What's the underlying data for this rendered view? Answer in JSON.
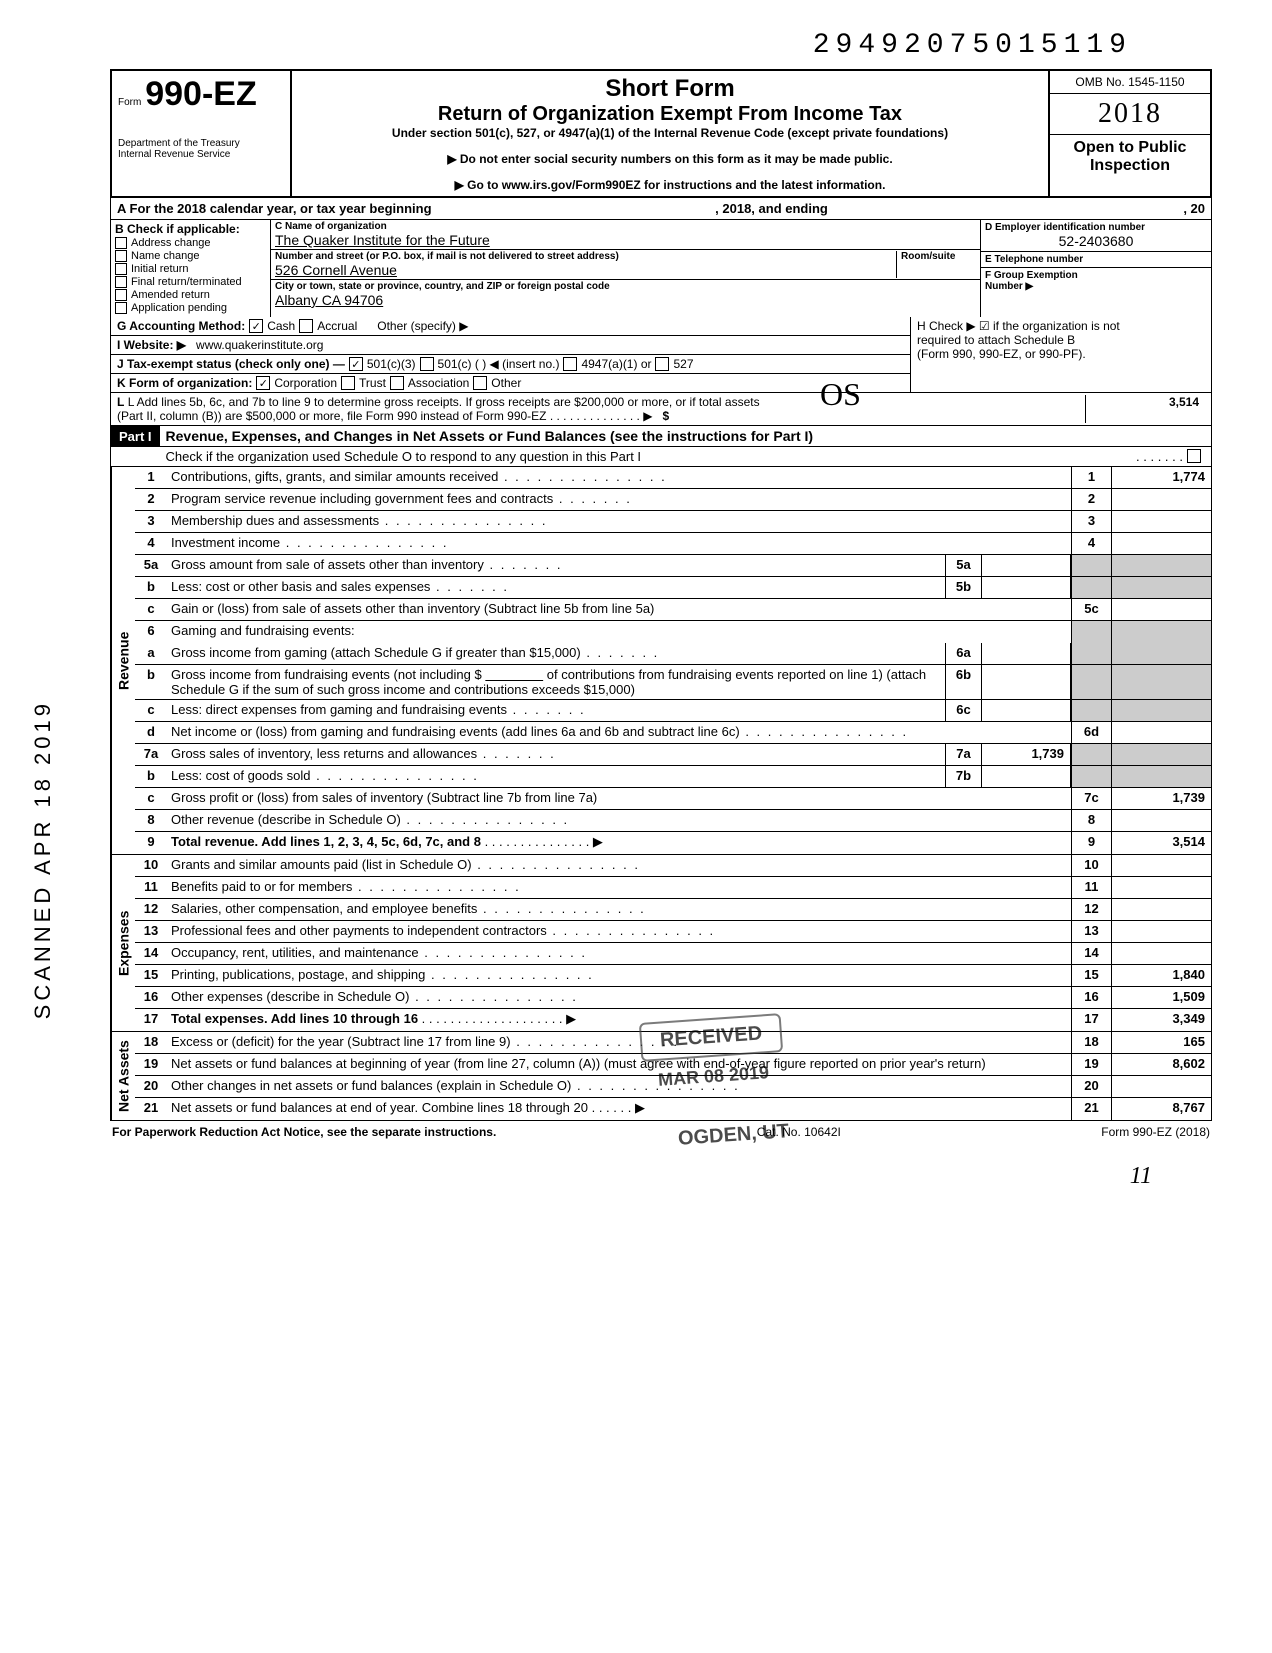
{
  "top_number": "29492075015119",
  "form": {
    "label": "Form",
    "number": "990-EZ",
    "dept1": "Department of the Treasury",
    "dept2": "Internal Revenue Service"
  },
  "header": {
    "short_form": "Short Form",
    "title": "Return of Organization Exempt From Income Tax",
    "subtitle": "Under section 501(c), 527, or 4947(a)(1) of the Internal Revenue Code (except private foundations)",
    "instr1": "▶ Do not enter social security numbers on this form as it may be made public.",
    "instr2": "▶ Go to www.irs.gov/Form990EZ for instructions and the latest information.",
    "omb": "OMB No. 1545-1150",
    "year": "2018",
    "open1": "Open to Public",
    "open2": "Inspection"
  },
  "row_a": {
    "left": "A  For the 2018 calendar year, or tax year beginning",
    "mid": ", 2018, and ending",
    "right": ", 20"
  },
  "col_b": {
    "hdr": "B  Check if applicable:",
    "items": [
      "Address change",
      "Name change",
      "Initial return",
      "Final return/terminated",
      "Amended return",
      "Application pending"
    ]
  },
  "col_c": {
    "name_lbl": "C  Name of organization",
    "name_val": "The Quaker Institute for the Future",
    "addr_lbl": "Number and street (or P.O. box, if mail is not delivered to street address)",
    "room_lbl": "Room/suite",
    "addr_val": "526 Cornell Avenue",
    "city_lbl": "City or town, state or province, country, and ZIP or foreign postal code",
    "city_val": "Albany CA 94706"
  },
  "col_d": {
    "ein_lbl": "D Employer identification number",
    "ein_val": "52-2403680",
    "tel_lbl": "E  Telephone number",
    "tel_val": "",
    "grp_lbl": "F  Group Exemption",
    "grp_lbl2": "Number ▶"
  },
  "row_g": "G  Accounting Method:",
  "row_g_opts": [
    "Cash",
    "Accrual",
    "Other (specify) ▶"
  ],
  "row_i": "I   Website: ▶",
  "website": "www.quakerinstitute.org",
  "row_j": "J  Tax-exempt status (check only one) —",
  "row_j_opts": [
    "501(c)(3)",
    "501(c) (        ) ◀ (insert no.)",
    "4947(a)(1) or",
    "527"
  ],
  "row_k": "K  Form of organization:",
  "row_k_opts": [
    "Corporation",
    "Trust",
    "Association",
    "Other"
  ],
  "row_h": {
    "l1": "H  Check ▶ ☑ if the organization is not",
    "l2": "required to attach Schedule B",
    "l3": "(Form 990, 990-EZ, or 990-PF)."
  },
  "row_l": {
    "txt1": "L  Add lines 5b, 6c, and 7b to line 9 to determine gross receipts. If gross receipts are $200,000 or more, or if total assets",
    "txt2": "(Part II, column (B)) are $500,000 or more, file Form 990 instead of Form 990-EZ",
    "amt": "3,514"
  },
  "part1": {
    "label": "Part I",
    "title": "Revenue, Expenses, and Changes in Net Assets or Fund Balances (see the instructions for Part I)",
    "check_o": "Check if the organization used Schedule O to respond to any question in this Part I"
  },
  "sections": {
    "revenue": "Revenue",
    "expenses": "Expenses",
    "netassets": "Net Assets"
  },
  "lines": {
    "l1": {
      "n": "1",
      "t": "Contributions, gifts, grants, and similar amounts received",
      "a": "1,774"
    },
    "l2": {
      "n": "2",
      "t": "Program service revenue including government fees and contracts",
      "a": ""
    },
    "l3": {
      "n": "3",
      "t": "Membership dues and assessments",
      "a": ""
    },
    "l4": {
      "n": "4",
      "t": "Investment income",
      "a": ""
    },
    "l5a": {
      "n": "5a",
      "t": "Gross amount from sale of assets other than inventory",
      "m": "5a"
    },
    "l5b": {
      "n": "b",
      "t": "Less: cost or other basis and sales expenses",
      "m": "5b"
    },
    "l5c": {
      "n": "c",
      "t": "Gain or (loss) from sale of assets other than inventory (Subtract line 5b from line 5a)",
      "b": "5c"
    },
    "l6": {
      "n": "6",
      "t": "Gaming and fundraising events:"
    },
    "l6a": {
      "n": "a",
      "t": "Gross income from gaming (attach Schedule G if greater than $15,000)",
      "m": "6a"
    },
    "l6b": {
      "n": "b",
      "t": "Gross income from fundraising events (not including  $",
      "t2": "of contributions from fundraising events reported on line 1) (attach Schedule G if the sum of such gross income and contributions exceeds $15,000)",
      "m": "6b"
    },
    "l6c": {
      "n": "c",
      "t": "Less: direct expenses from gaming and fundraising events",
      "m": "6c"
    },
    "l6d": {
      "n": "d",
      "t": "Net income or (loss) from gaming and fundraising events (add lines 6a and 6b and subtract line 6c)",
      "b": "6d"
    },
    "l7a": {
      "n": "7a",
      "t": "Gross sales of inventory, less returns and allowances",
      "m": "7a",
      "ma": "1,739"
    },
    "l7b": {
      "n": "b",
      "t": "Less: cost of goods sold",
      "m": "7b"
    },
    "l7c": {
      "n": "c",
      "t": "Gross profit or (loss) from sales of inventory (Subtract line 7b from line 7a)",
      "b": "7c",
      "a": "1,739"
    },
    "l8": {
      "n": "8",
      "t": "Other revenue (describe in Schedule O)",
      "b": "8"
    },
    "l9": {
      "n": "9",
      "t": "Total revenue. Add lines 1, 2, 3, 4, 5c, 6d, 7c, and 8",
      "b": "9",
      "a": "3,514"
    },
    "l10": {
      "n": "10",
      "t": "Grants and similar amounts paid (list in Schedule O)",
      "b": "10"
    },
    "l11": {
      "n": "11",
      "t": "Benefits paid to or for members",
      "b": "11"
    },
    "l12": {
      "n": "12",
      "t": "Salaries, other compensation, and employee benefits",
      "b": "12"
    },
    "l13": {
      "n": "13",
      "t": "Professional fees and other payments to independent contractors",
      "b": "13"
    },
    "l14": {
      "n": "14",
      "t": "Occupancy, rent, utilities, and maintenance",
      "b": "14"
    },
    "l15": {
      "n": "15",
      "t": "Printing, publications, postage, and shipping",
      "b": "15",
      "a": "1,840"
    },
    "l16": {
      "n": "16",
      "t": "Other expenses (describe in Schedule O)",
      "b": "16",
      "a": "1,509"
    },
    "l17": {
      "n": "17",
      "t": "Total expenses. Add lines 10 through 16",
      "b": "17",
      "a": "3,349"
    },
    "l18": {
      "n": "18",
      "t": "Excess or (deficit) for the year (Subtract line 17 from line 9)",
      "b": "18",
      "a": "165"
    },
    "l19": {
      "n": "19",
      "t": "Net assets or fund balances at beginning of year (from line 27, column (A)) (must agree with end-of-year figure reported on prior year's return)",
      "b": "19",
      "a": "8,602"
    },
    "l20": {
      "n": "20",
      "t": "Other changes in net assets or fund balances (explain in Schedule O)",
      "b": "20"
    },
    "l21": {
      "n": "21",
      "t": "Net assets or fund balances at end of year. Combine lines 18 through 20",
      "b": "21",
      "a": "8,767"
    }
  },
  "footer": {
    "left": "For Paperwork Reduction Act Notice, see the separate instructions.",
    "mid": "Cat. No. 10642I",
    "right": "Form 990-EZ (2018)"
  },
  "page_num": "11",
  "side_text": "SCANNED APR 18 2019",
  "stamps": {
    "received": "RECEIVED",
    "date": "MAR 08 2019",
    "ogden": "OGDEN, UT"
  },
  "initials": "OS"
}
